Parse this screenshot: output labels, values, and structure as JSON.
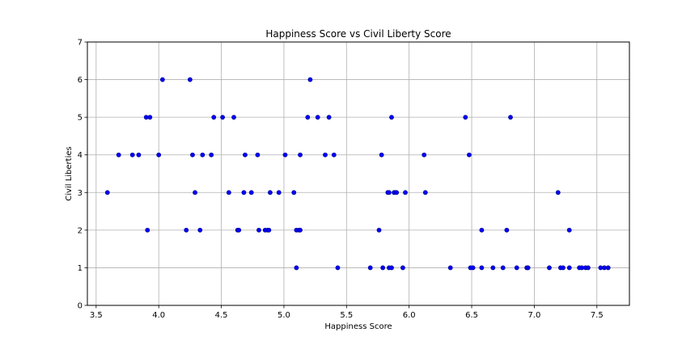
{
  "chart_data": {
    "type": "scatter",
    "title": "Happiness Score vs Civil Liberty Score",
    "xlabel": "Happiness Score",
    "ylabel": "Civil Liberties",
    "xlim": [
      3.43,
      7.76
    ],
    "ylim": [
      0,
      7
    ],
    "xticks": [
      3.5,
      4.0,
      4.5,
      5.0,
      5.5,
      6.0,
      6.5,
      7.0,
      7.5
    ],
    "yticks": [
      0,
      1,
      2,
      3,
      4,
      5,
      6,
      7
    ],
    "xtick_labels": [
      "3.5",
      "4.0",
      "4.5",
      "5.0",
      "5.5",
      "6.0",
      "6.5",
      "7.0",
      "7.5"
    ],
    "ytick_labels": [
      "0",
      "1",
      "2",
      "3",
      "4",
      "5",
      "6",
      "7"
    ],
    "grid": true,
    "marker_color": "#0000ff",
    "points": [
      {
        "x": 4.03,
        "y": 6
      },
      {
        "x": 4.25,
        "y": 6
      },
      {
        "x": 5.21,
        "y": 6
      },
      {
        "x": 3.9,
        "y": 5
      },
      {
        "x": 3.93,
        "y": 5
      },
      {
        "x": 4.44,
        "y": 5
      },
      {
        "x": 4.51,
        "y": 5
      },
      {
        "x": 4.6,
        "y": 5
      },
      {
        "x": 5.19,
        "y": 5
      },
      {
        "x": 5.27,
        "y": 5
      },
      {
        "x": 5.36,
        "y": 5
      },
      {
        "x": 5.86,
        "y": 5
      },
      {
        "x": 6.45,
        "y": 5
      },
      {
        "x": 6.81,
        "y": 5
      },
      {
        "x": 3.68,
        "y": 4
      },
      {
        "x": 3.79,
        "y": 4
      },
      {
        "x": 3.84,
        "y": 4
      },
      {
        "x": 4.0,
        "y": 4
      },
      {
        "x": 4.27,
        "y": 4
      },
      {
        "x": 4.35,
        "y": 4
      },
      {
        "x": 4.42,
        "y": 4
      },
      {
        "x": 4.69,
        "y": 4
      },
      {
        "x": 4.79,
        "y": 4
      },
      {
        "x": 5.01,
        "y": 4
      },
      {
        "x": 5.13,
        "y": 4
      },
      {
        "x": 5.33,
        "y": 4
      },
      {
        "x": 5.4,
        "y": 4
      },
      {
        "x": 5.78,
        "y": 4
      },
      {
        "x": 6.12,
        "y": 4
      },
      {
        "x": 6.48,
        "y": 4
      },
      {
        "x": 3.59,
        "y": 3
      },
      {
        "x": 4.29,
        "y": 3
      },
      {
        "x": 4.56,
        "y": 3
      },
      {
        "x": 4.68,
        "y": 3
      },
      {
        "x": 4.74,
        "y": 3
      },
      {
        "x": 4.89,
        "y": 3
      },
      {
        "x": 4.96,
        "y": 3
      },
      {
        "x": 5.08,
        "y": 3
      },
      {
        "x": 5.83,
        "y": 3
      },
      {
        "x": 5.84,
        "y": 3
      },
      {
        "x": 5.88,
        "y": 3
      },
      {
        "x": 5.89,
        "y": 3
      },
      {
        "x": 5.9,
        "y": 3
      },
      {
        "x": 5.97,
        "y": 3
      },
      {
        "x": 6.13,
        "y": 3
      },
      {
        "x": 7.19,
        "y": 3
      },
      {
        "x": 3.91,
        "y": 2
      },
      {
        "x": 4.22,
        "y": 2
      },
      {
        "x": 4.33,
        "y": 2
      },
      {
        "x": 4.63,
        "y": 2
      },
      {
        "x": 4.64,
        "y": 2
      },
      {
        "x": 4.8,
        "y": 2
      },
      {
        "x": 4.85,
        "y": 2
      },
      {
        "x": 4.87,
        "y": 2
      },
      {
        "x": 4.88,
        "y": 2
      },
      {
        "x": 5.1,
        "y": 2
      },
      {
        "x": 5.12,
        "y": 2
      },
      {
        "x": 5.13,
        "y": 2
      },
      {
        "x": 5.76,
        "y": 2
      },
      {
        "x": 6.58,
        "y": 2
      },
      {
        "x": 6.78,
        "y": 2
      },
      {
        "x": 7.28,
        "y": 2
      },
      {
        "x": 5.1,
        "y": 1
      },
      {
        "x": 5.43,
        "y": 1
      },
      {
        "x": 5.69,
        "y": 1
      },
      {
        "x": 5.79,
        "y": 1
      },
      {
        "x": 5.84,
        "y": 1
      },
      {
        "x": 5.86,
        "y": 1
      },
      {
        "x": 5.95,
        "y": 1
      },
      {
        "x": 6.33,
        "y": 1
      },
      {
        "x": 6.49,
        "y": 1
      },
      {
        "x": 6.51,
        "y": 1
      },
      {
        "x": 6.58,
        "y": 1
      },
      {
        "x": 6.67,
        "y": 1
      },
      {
        "x": 6.75,
        "y": 1
      },
      {
        "x": 6.86,
        "y": 1
      },
      {
        "x": 6.94,
        "y": 1
      },
      {
        "x": 6.95,
        "y": 1
      },
      {
        "x": 7.12,
        "y": 1
      },
      {
        "x": 7.21,
        "y": 1
      },
      {
        "x": 7.23,
        "y": 1
      },
      {
        "x": 7.28,
        "y": 1
      },
      {
        "x": 7.36,
        "y": 1
      },
      {
        "x": 7.38,
        "y": 1
      },
      {
        "x": 7.41,
        "y": 1
      },
      {
        "x": 7.43,
        "y": 1
      },
      {
        "x": 7.53,
        "y": 1
      },
      {
        "x": 7.56,
        "y": 1
      },
      {
        "x": 7.59,
        "y": 1
      }
    ]
  }
}
